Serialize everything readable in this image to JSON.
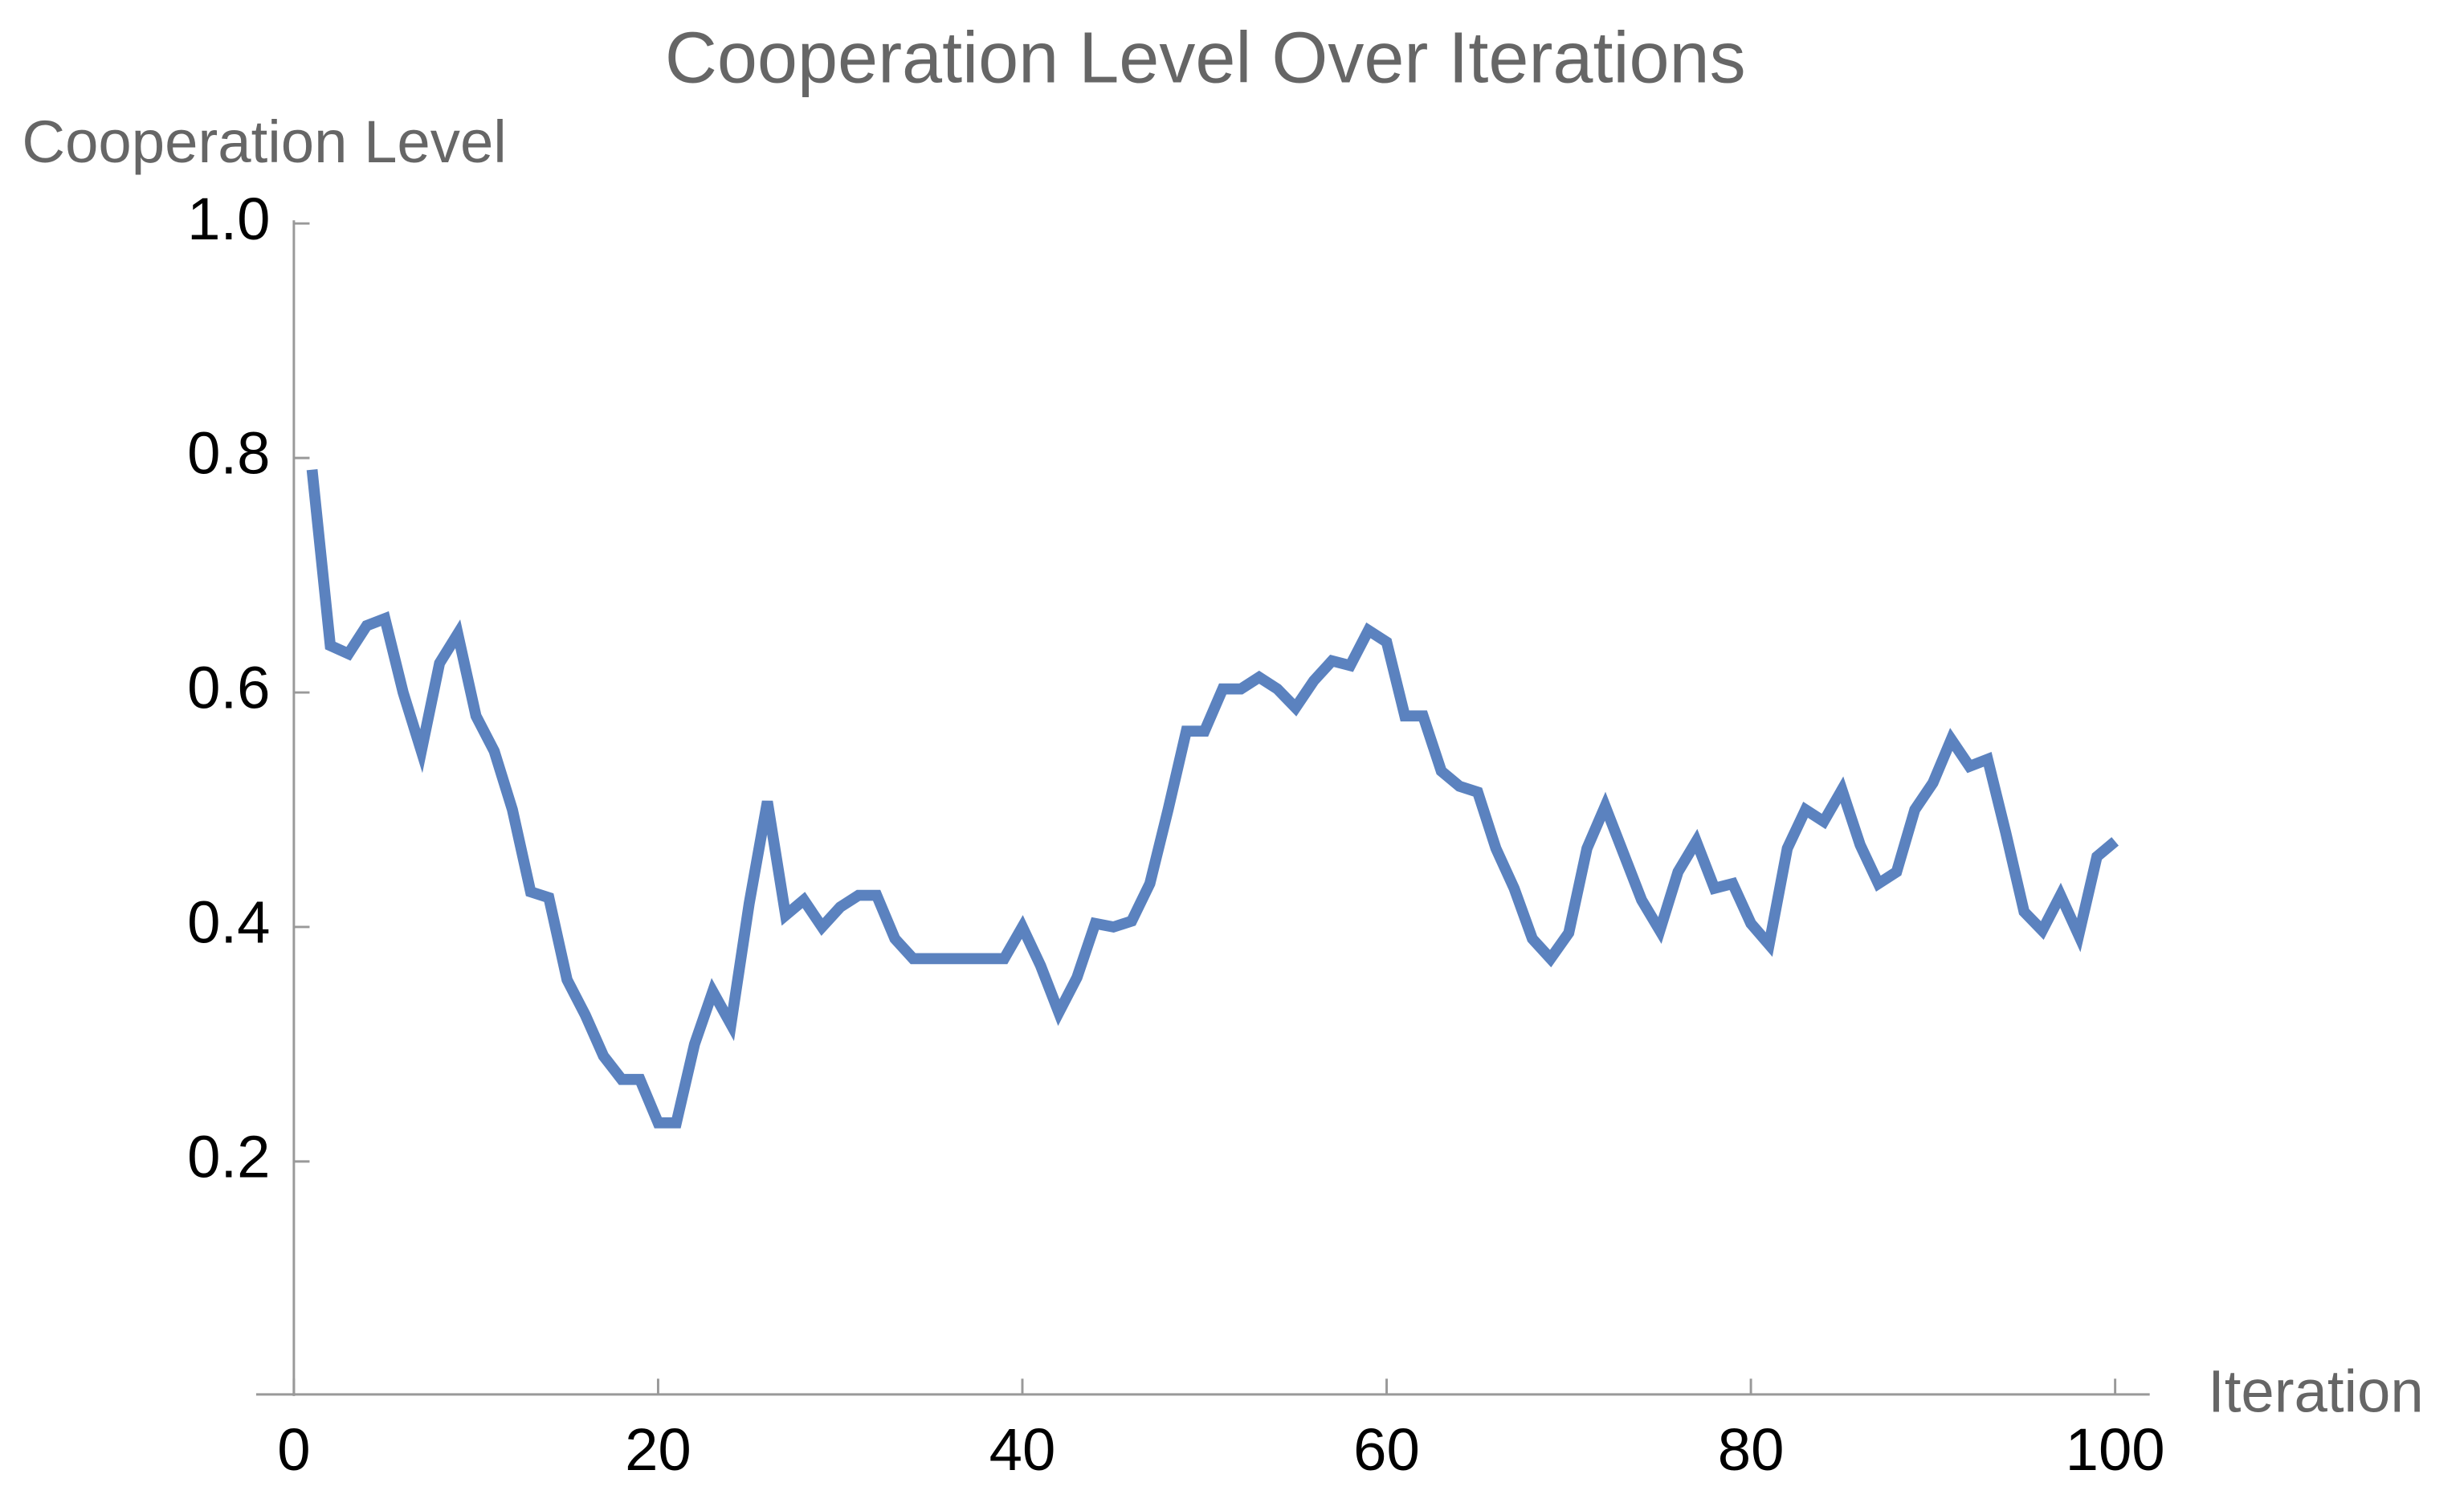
{
  "chart_data": {
    "type": "line",
    "title": "Cooperation Level Over Iterations",
    "x_label": "Iteration",
    "y_label": "Cooperation Level",
    "x": [
      1,
      2,
      3,
      4,
      5,
      6,
      7,
      8,
      9,
      10,
      11,
      12,
      13,
      14,
      15,
      16,
      17,
      18,
      19,
      20,
      21,
      22,
      23,
      24,
      25,
      26,
      27,
      28,
      29,
      30,
      31,
      32,
      33,
      34,
      35,
      36,
      37,
      38,
      39,
      40,
      41,
      42,
      43,
      44,
      45,
      46,
      47,
      48,
      49,
      50,
      51,
      52,
      53,
      54,
      55,
      56,
      57,
      58,
      59,
      60,
      61,
      62,
      63,
      64,
      65,
      66,
      67,
      68,
      69,
      70,
      71,
      72,
      73,
      74,
      75,
      76,
      77,
      78,
      79,
      80,
      81,
      82,
      83,
      84,
      85,
      86,
      87,
      88,
      89,
      90,
      91,
      92,
      93,
      94,
      95,
      96,
      97,
      98,
      99,
      100
    ],
    "series": [
      {
        "name": "Cooperation Level",
        "color": "#5b82bf",
        "values": [
          0.79,
          0.64,
          0.633,
          0.657,
          0.663,
          0.6,
          0.55,
          0.625,
          0.65,
          0.58,
          0.55,
          0.5,
          0.43,
          0.425,
          0.355,
          0.325,
          0.29,
          0.27,
          0.27,
          0.233,
          0.233,
          0.3,
          0.345,
          0.317,
          0.42,
          0.507,
          0.41,
          0.423,
          0.4,
          0.417,
          0.427,
          0.427,
          0.39,
          0.373,
          0.373,
          0.373,
          0.373,
          0.373,
          0.373,
          0.4,
          0.367,
          0.327,
          0.357,
          0.403,
          0.4,
          0.405,
          0.437,
          0.5,
          0.567,
          0.567,
          0.603,
          0.603,
          0.613,
          0.603,
          0.587,
          0.61,
          0.627,
          0.623,
          0.653,
          0.643,
          0.58,
          0.58,
          0.533,
          0.52,
          0.515,
          0.467,
          0.433,
          0.39,
          0.373,
          0.395,
          0.467,
          0.503,
          0.463,
          0.423,
          0.397,
          0.447,
          0.473,
          0.433,
          0.437,
          0.403,
          0.385,
          0.467,
          0.5,
          0.49,
          0.517,
          0.47,
          0.437,
          0.447,
          0.5,
          0.523,
          0.56,
          0.537,
          0.543,
          0.48,
          0.413,
          0.397,
          0.427,
          0.393,
          0.46,
          0.473
        ]
      }
    ],
    "xlim": [
      0,
      100
    ],
    "xticks": [
      0,
      20,
      40,
      60,
      80,
      100
    ],
    "ylim": [
      0,
      1
    ],
    "yticks": [
      0.2,
      0.4,
      0.6,
      0.8,
      {
        "value": 1,
        "label": "1.0"
      }
    ],
    "grid": false
  }
}
